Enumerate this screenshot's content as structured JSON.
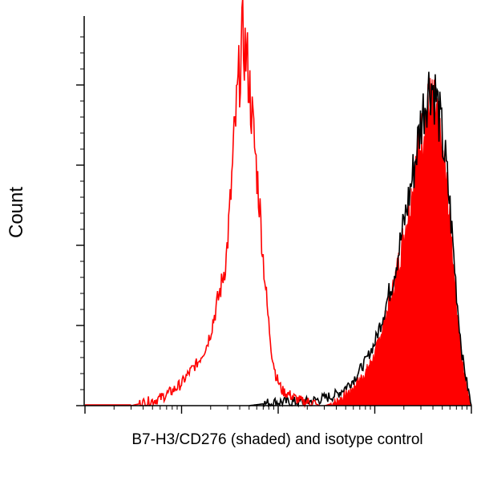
{
  "chart_data": {
    "type": "area",
    "title": "",
    "xlabel": "B7-H3/CD276 (shaded) and isotype control",
    "ylabel": "Count",
    "x_scale": "log",
    "xlim": [
      0.1,
      1000
    ],
    "ylim": [
      0,
      100
    ],
    "tick_labels_shown": false,
    "grid": false,
    "series": [
      {
        "style": "red-outline",
        "color": "#ff0000",
        "x": [
          0.3,
          0.45,
          0.6,
          0.8,
          1.0,
          1.2,
          1.5,
          1.8,
          2.0,
          2.3,
          2.6,
          2.9,
          3.2,
          3.5,
          3.9,
          4.3,
          4.8,
          5.3,
          5.8,
          6.4,
          7.0,
          7.8,
          8.6,
          9.5,
          11,
          13,
          15,
          18,
          22,
          27
        ],
        "values": [
          0,
          1,
          2,
          4,
          6,
          9,
          12,
          16,
          20,
          27,
          33,
          40,
          55,
          72,
          88,
          100,
          93,
          80,
          68,
          55,
          40,
          25,
          14,
          8,
          4,
          3,
          2,
          1,
          1,
          0
        ]
      },
      {
        "style": "black-outline",
        "color": "#000000",
        "x": [
          5,
          10,
          20,
          30,
          40,
          50,
          60,
          80,
          100,
          120,
          150,
          180,
          220,
          260,
          300,
          340,
          380,
          430,
          480,
          540,
          600,
          660,
          720,
          800,
          900,
          1000
        ],
        "values": [
          0,
          1,
          1,
          2,
          3,
          5,
          7,
          12,
          17,
          24,
          33,
          43,
          55,
          66,
          77,
          84,
          88,
          84,
          76,
          66,
          54,
          40,
          27,
          14,
          6,
          0
        ]
      },
      {
        "style": "red-filled",
        "color": "#ff0000",
        "x": [
          30,
          40,
          50,
          60,
          80,
          100,
          120,
          150,
          180,
          220,
          260,
          300,
          340,
          380,
          430,
          480,
          540,
          600,
          660,
          720,
          800,
          900,
          1000
        ],
        "values": [
          0,
          1,
          3,
          5,
          9,
          14,
          21,
          30,
          40,
          52,
          63,
          72,
          79,
          82,
          79,
          72,
          62,
          50,
          37,
          24,
          12,
          5,
          0
        ]
      }
    ]
  }
}
